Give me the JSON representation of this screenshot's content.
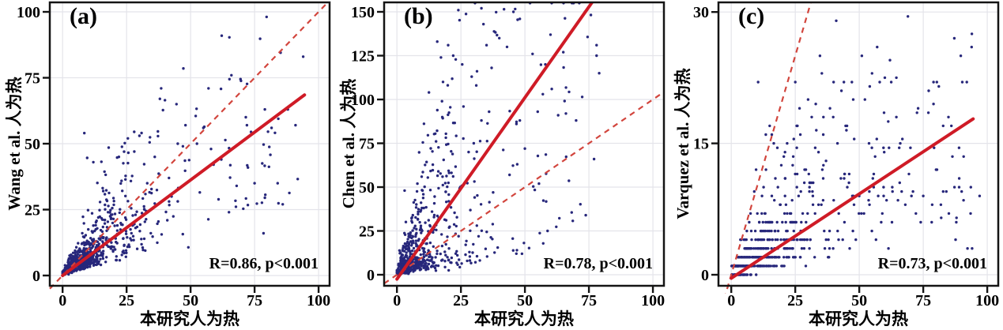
{
  "style": {
    "background": "#ffffff",
    "point_color": "#27277b",
    "regression_color": "#cf1b26",
    "identity_color": "#d2453d",
    "grid_color": "#e4e4ea",
    "axis_color": "#141414",
    "text_color": "#000000"
  },
  "chart_data": [
    {
      "type": "scatter",
      "panel_label": "(a)",
      "xlabel": "本研究人为热",
      "ylabel": "Wang et al. 人为热",
      "annotation": "R=0.86, p<0.001",
      "R": 0.86,
      "p": "<0.001",
      "xlim": [
        -5,
        104.3
      ],
      "ylim": [
        -3.9,
        103.6
      ],
      "xticks": [
        0,
        25,
        50,
        75,
        100
      ],
      "yticks": [
        0,
        25,
        50,
        75,
        100
      ],
      "grid": true,
      "legend": "none",
      "regression_line": {
        "x1": 0,
        "y1": 0,
        "x2": 94.5,
        "y2": 68.5
      },
      "identity_line": {
        "x1": -5,
        "y1": -5,
        "x2": 104.3,
        "y2": 104.3
      },
      "cloud": {
        "n": 820,
        "seed": 7,
        "x_exp_scale": 11,
        "x_uniform_frac": 0.1,
        "x_uniform_range": [
          3,
          93
        ],
        "x_cap": 97,
        "y_cap": 100,
        "base_noise": 1.5,
        "quantize": false,
        "components": [
          {
            "frac": 1.0,
            "slope": 0.72,
            "sigma": 0.55
          }
        ]
      },
      "sample_points": [
        [
          94,
          83
        ],
        [
          91,
          57
        ],
        [
          69.5,
          74.5
        ],
        [
          79,
          63
        ],
        [
          57,
          71
        ],
        [
          38.5,
          71
        ],
        [
          38,
          67
        ],
        [
          40,
          66.5
        ],
        [
          44.5,
          65
        ],
        [
          52,
          60.5
        ],
        [
          48,
          57
        ],
        [
          55,
          56
        ],
        [
          8.5,
          54
        ],
        [
          25.5,
          52
        ],
        [
          30,
          53
        ],
        [
          34,
          50.5
        ],
        [
          45,
          50
        ],
        [
          47,
          49
        ],
        [
          78,
          42.5
        ],
        [
          84,
          35
        ],
        [
          79,
          29.5
        ],
        [
          86,
          27
        ],
        [
          65,
          24
        ],
        [
          75,
          35
        ],
        [
          62,
          44
        ],
        [
          58,
          48
        ],
        [
          52.5,
          50
        ],
        [
          36,
          45
        ],
        [
          28,
          47
        ],
        [
          22,
          45
        ],
        [
          18,
          48.5
        ],
        [
          12,
          43
        ],
        [
          9.6,
          44.6
        ],
        [
          68,
          34
        ],
        [
          72,
          57
        ],
        [
          88,
          63
        ]
      ]
    },
    {
      "type": "scatter",
      "panel_label": "(b)",
      "xlabel": "本研究人为热",
      "ylabel": "Chen et al. 人为热",
      "annotation": "R=0.78, p<0.001",
      "R": 0.78,
      "p": "<0.001",
      "xlim": [
        -5,
        104.3
      ],
      "ylim": [
        -6.3,
        155.4
      ],
      "xticks": [
        0,
        25,
        50,
        75,
        100
      ],
      "yticks": [
        0,
        25,
        50,
        75,
        100,
        125,
        150
      ],
      "grid": true,
      "legend": "none",
      "regression_line": {
        "x1": 0,
        "y1": -2.5,
        "x2": 77,
        "y2": 157
      },
      "identity_line": {
        "x1": -5,
        "y1": -5,
        "x2": 104.3,
        "y2": 104.3
      },
      "cloud": {
        "n": 680,
        "seed": 13,
        "x_exp_scale": 10,
        "x_uniform_frac": 0.13,
        "x_uniform_range": [
          3,
          78
        ],
        "x_cap": 79,
        "y_cap": 155,
        "base_noise": 2.5,
        "quantize": false,
        "components": [
          {
            "frac": 0.5,
            "slope": 0.5,
            "sigma": 0.65
          },
          {
            "frac": 0.5,
            "slope": 3.1,
            "sigma": 0.5
          }
        ]
      },
      "sample_points": [
        [
          24,
          151
        ],
        [
          30.5,
          155
        ],
        [
          33,
          152
        ],
        [
          38,
          156
        ],
        [
          45.5,
          150
        ],
        [
          48,
          146
        ],
        [
          52,
          155
        ],
        [
          60,
          137
        ],
        [
          70,
          156
        ],
        [
          73.5,
          150
        ],
        [
          78,
          131
        ],
        [
          78,
          125
        ],
        [
          79,
          115
        ],
        [
          77,
          66
        ],
        [
          55.5,
          52
        ],
        [
          57,
          103
        ],
        [
          60.5,
          106
        ],
        [
          63,
          91
        ],
        [
          66,
          92
        ],
        [
          70,
          88
        ],
        [
          35,
          131
        ],
        [
          20,
          131
        ],
        [
          22,
          125
        ],
        [
          25.5,
          120
        ],
        [
          40,
          135
        ],
        [
          43,
          130
        ],
        [
          12.5,
          104
        ],
        [
          18,
          110
        ],
        [
          8,
          52
        ],
        [
          10,
          48
        ],
        [
          3,
          48
        ],
        [
          50,
          72
        ],
        [
          47,
          63
        ],
        [
          44,
          57
        ],
        [
          36,
          93
        ],
        [
          33,
          88
        ],
        [
          30,
          75
        ],
        [
          28,
          70
        ],
        [
          26,
          96
        ],
        [
          31,
          108
        ],
        [
          37,
          118
        ],
        [
          53,
          126
        ],
        [
          58,
          120
        ],
        [
          65,
          127
        ],
        [
          55,
          93
        ],
        [
          48,
          88
        ]
      ]
    },
    {
      "type": "scatter",
      "panel_label": "(c)",
      "xlabel": "本研究人为热",
      "ylabel": "Varquez et al. 人为热",
      "annotation": "R=0.73, p<0.001",
      "R": 0.73,
      "p": "<0.001",
      "xlim": [
        -5,
        104.3
      ],
      "ylim": [
        -1.26,
        31.1
      ],
      "xticks": [
        0,
        25,
        50,
        75,
        100
      ],
      "yticks": [
        0,
        15,
        30
      ],
      "grid": true,
      "legend": "none",
      "regression_line": {
        "x1": 0,
        "y1": -0.4,
        "x2": 94.5,
        "y2": 17.8
      },
      "identity_line": {
        "x1": -5,
        "y1": -5,
        "x2": 104.3,
        "y2": 104.3
      },
      "cloud": {
        "n": 560,
        "seed": 21,
        "x_exp_scale": 14,
        "x_uniform_frac": 0.22,
        "x_uniform_range": [
          2,
          95
        ],
        "x_cap": 96,
        "y_cap": 29.5,
        "base_noise": 0.8,
        "quantize": true,
        "components": [
          {
            "frac": 0.55,
            "slope": 0.12,
            "sigma": 0.75
          },
          {
            "frac": 0.45,
            "slope": 0.27,
            "sigma": 0.6
          }
        ]
      },
      "sample_points": [
        [
          41,
          29
        ],
        [
          69,
          29.5
        ],
        [
          94,
          27.5
        ],
        [
          57,
          26
        ],
        [
          62,
          24.5
        ],
        [
          51,
          25
        ],
        [
          55,
          23
        ],
        [
          60,
          22.5
        ],
        [
          64.5,
          22.5
        ],
        [
          10.5,
          22
        ],
        [
          25,
          22
        ],
        [
          40,
          22
        ],
        [
          44,
          22
        ],
        [
          58,
          22
        ],
        [
          62.5,
          22
        ],
        [
          79,
          22
        ],
        [
          92,
          22
        ],
        [
          73,
          19
        ],
        [
          77,
          18.5
        ],
        [
          70,
          14.5
        ],
        [
          66,
          15
        ],
        [
          48,
          15.5
        ],
        [
          45,
          16.5
        ],
        [
          41.5,
          15
        ],
        [
          97,
          9
        ],
        [
          90,
          9.5
        ],
        [
          85,
          7
        ],
        [
          82,
          6.5
        ],
        [
          88,
          6.5
        ],
        [
          75,
          9
        ],
        [
          71,
          9.5
        ],
        [
          80,
          12
        ],
        [
          13.5,
          16
        ],
        [
          15,
          17
        ],
        [
          18,
          14.5
        ],
        [
          12,
          9
        ],
        [
          9,
          9.5
        ],
        [
          7,
          6
        ],
        [
          30,
          20
        ],
        [
          33,
          19.5
        ],
        [
          36,
          18
        ],
        [
          27,
          16
        ],
        [
          21,
          14
        ],
        [
          24,
          12.5
        ],
        [
          50,
          9
        ],
        [
          54,
          8
        ],
        [
          59,
          7
        ],
        [
          63,
          9.5
        ],
        [
          68,
          8
        ],
        [
          74,
          6
        ],
        [
          84,
          9.5
        ],
        [
          86,
          17
        ],
        [
          89,
          14.5
        ]
      ]
    }
  ]
}
